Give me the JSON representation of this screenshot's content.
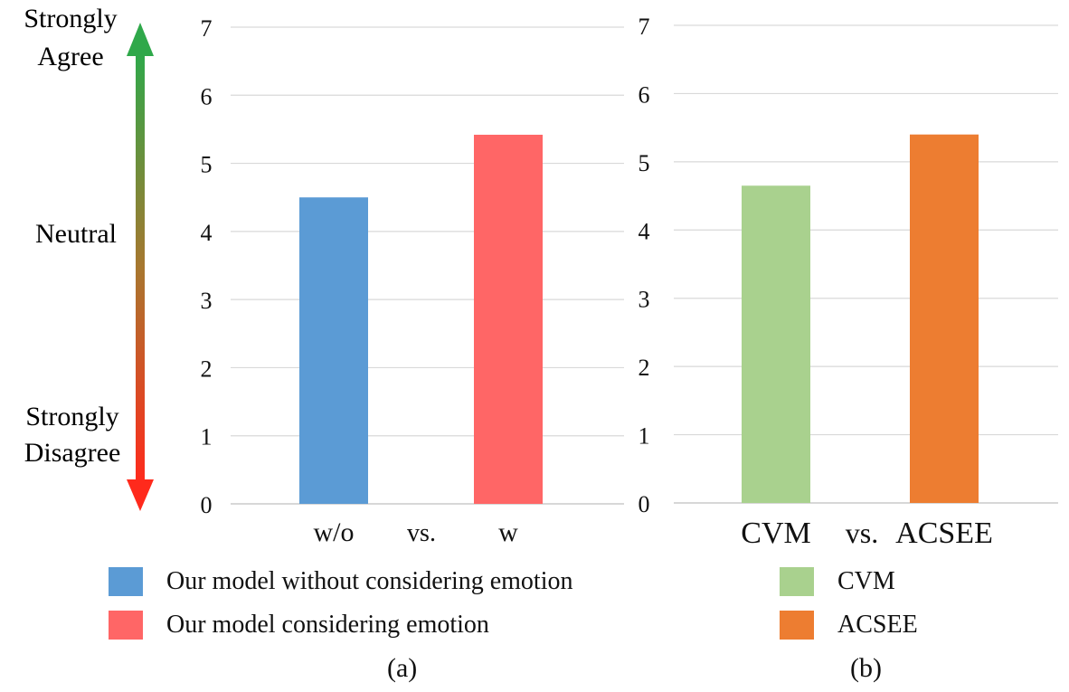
{
  "scale": {
    "top_label": [
      "Strongly",
      "Agree"
    ],
    "middle_label": "Neutral",
    "bottom_label": [
      "Strongly",
      "Disagree"
    ],
    "arrow_colors": {
      "top": "#2fa84a",
      "middle": "#a8772f",
      "bottom": "#ff2a1c"
    }
  },
  "chart_data": [
    {
      "type": "bar",
      "panel_label": "(a)",
      "categories": [
        "w/o",
        "w"
      ],
      "separator_label": "vs.",
      "values": [
        4.5,
        5.42
      ],
      "colors": [
        "#5b9bd5",
        "#ff6666"
      ],
      "yticks": [
        0,
        1,
        2,
        3,
        4,
        5,
        6,
        7
      ],
      "ylim": [
        0,
        7
      ],
      "grid": true,
      "legend": [
        "Our model without considering emotion",
        "Our model considering emotion"
      ],
      "legend_position": "bottom"
    },
    {
      "type": "bar",
      "panel_label": "(b)",
      "categories": [
        "CVM",
        "ACSEE"
      ],
      "separator_label": "vs.",
      "values": [
        4.65,
        5.4
      ],
      "colors": [
        "#a9d18e",
        "#ed7d31"
      ],
      "yticks": [
        0,
        1,
        2,
        3,
        4,
        5,
        6,
        7
      ],
      "ylim": [
        0,
        7
      ],
      "grid": true,
      "legend": [
        "CVM",
        "ACSEE"
      ],
      "legend_position": "bottom"
    }
  ]
}
